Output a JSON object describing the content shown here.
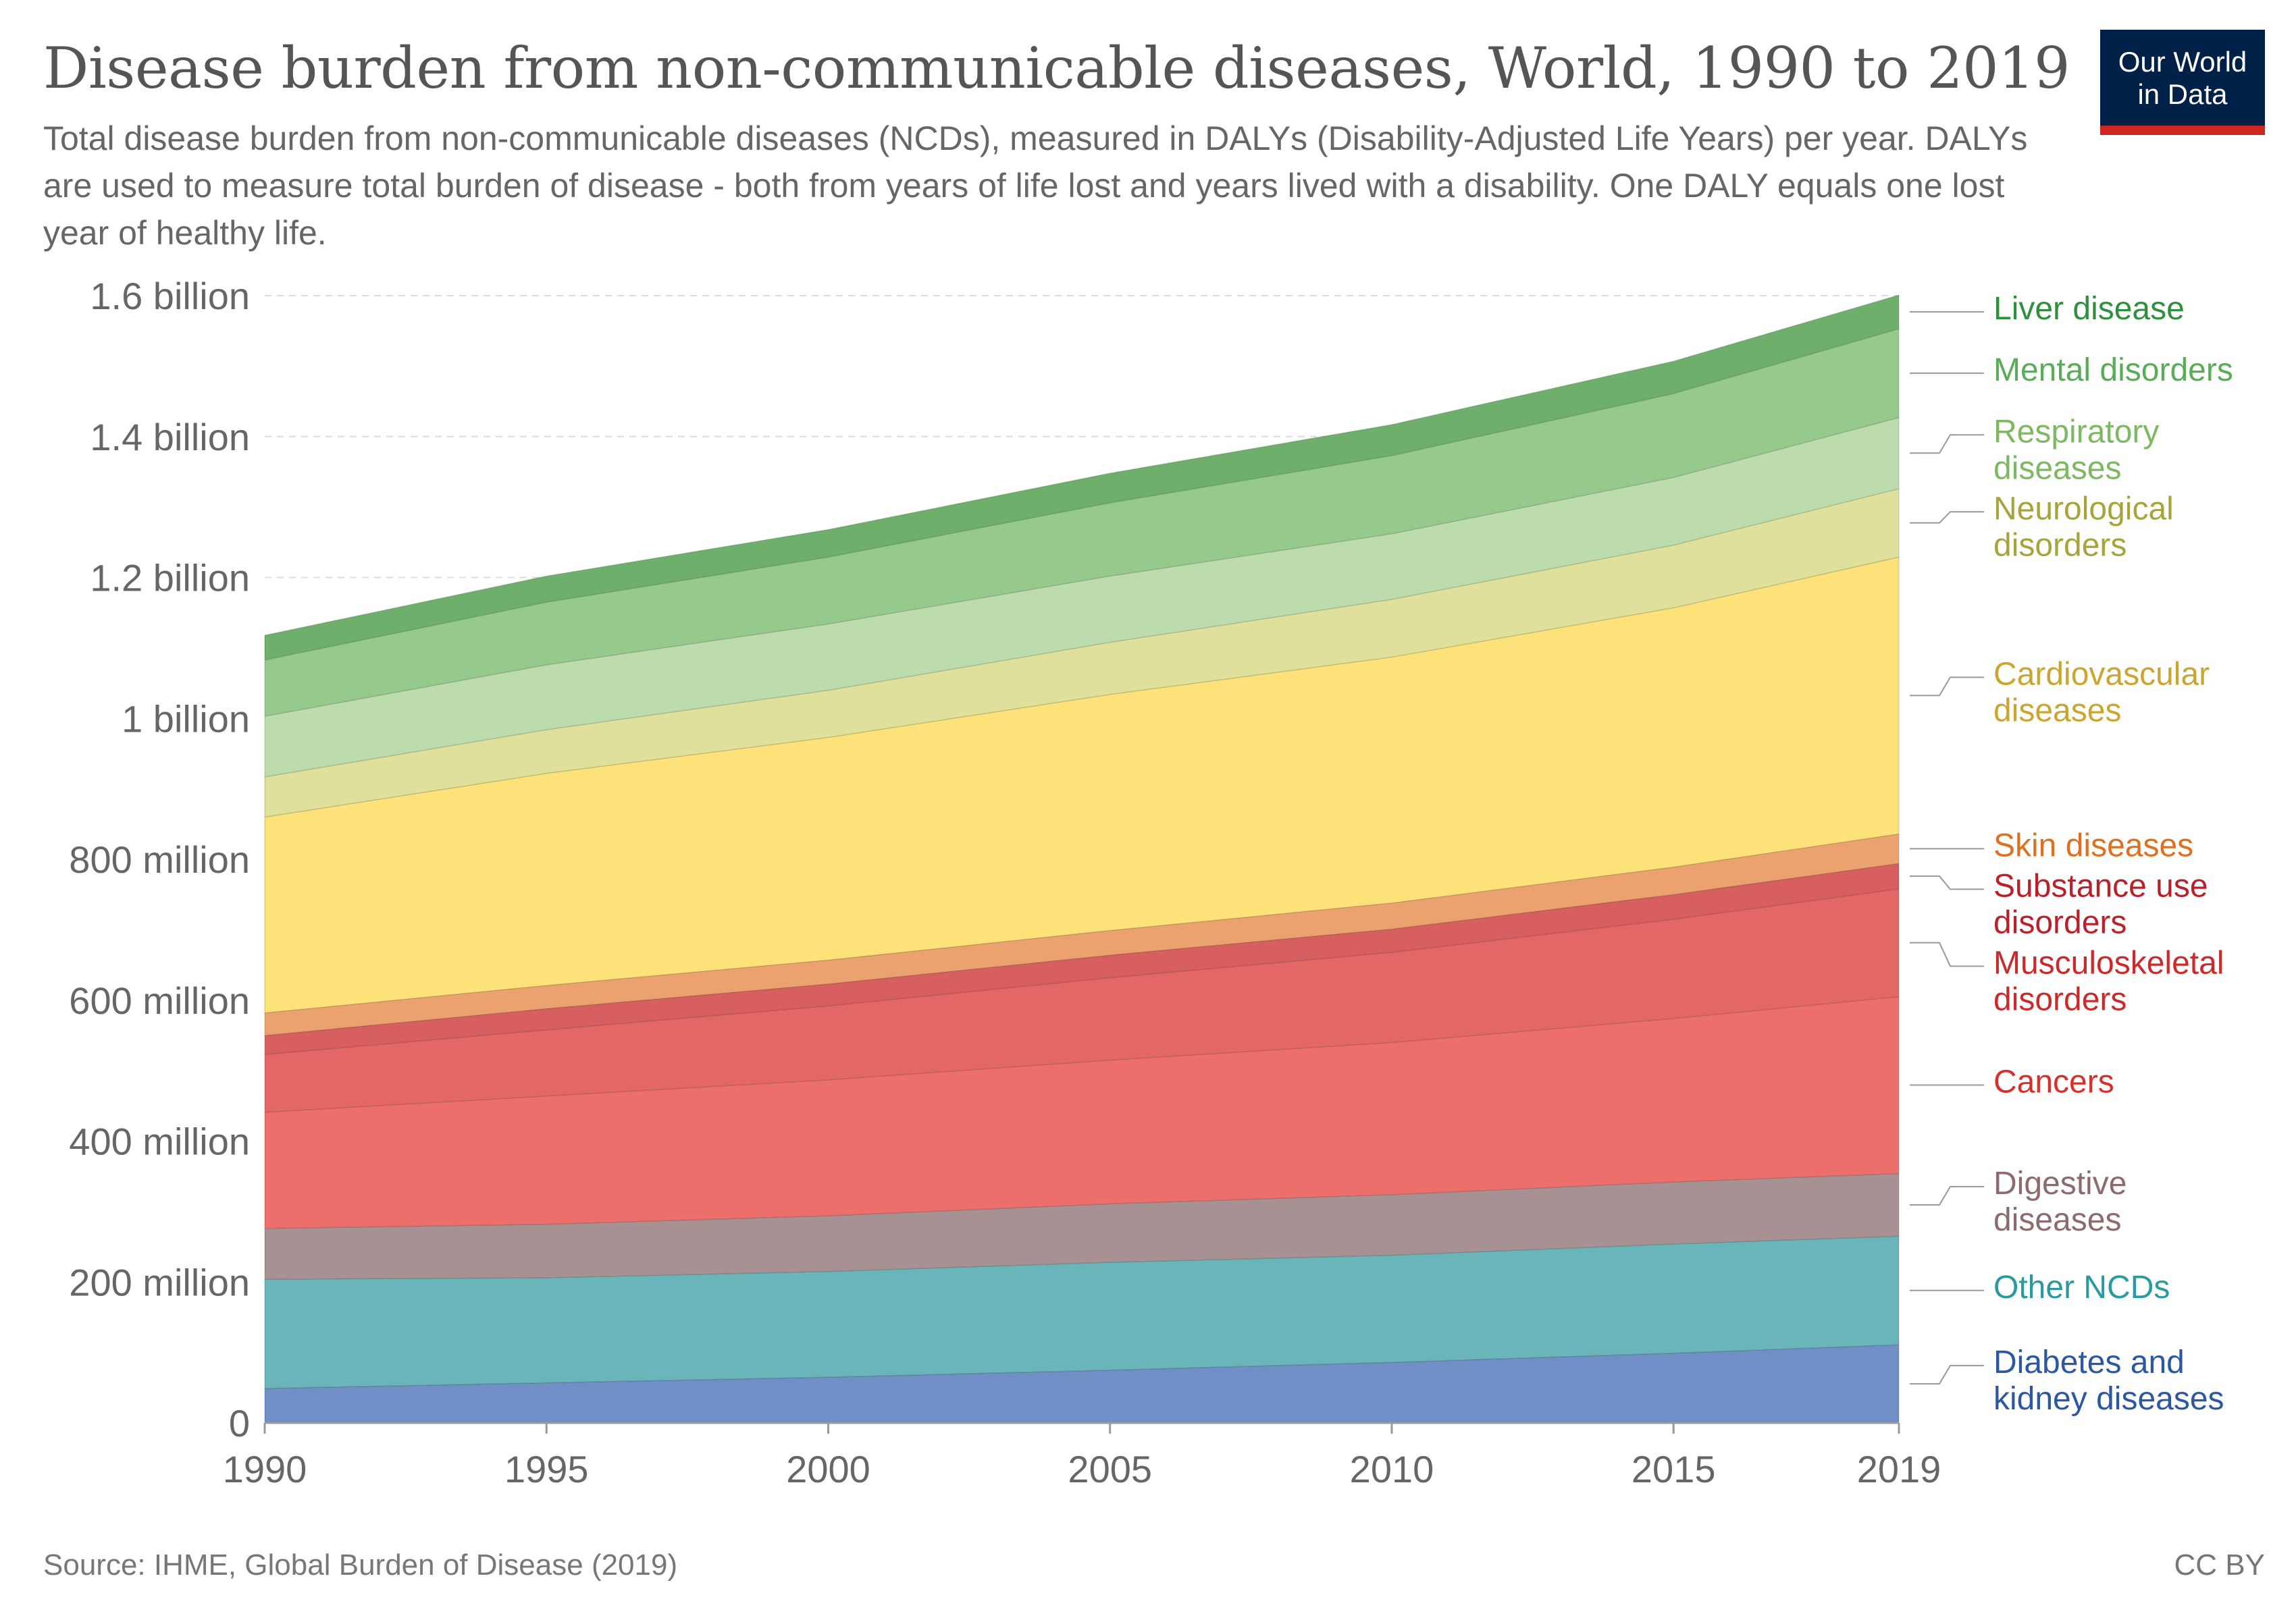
{
  "header": {
    "title": "Disease burden from non-communicable diseases, World, 1990 to 2019",
    "subtitle": "Total disease burden from non-communicable diseases (NCDs), measured in DALYs (Disability-Adjusted Life Years) per year. DALYs are used to measure total burden of disease - both from years of life lost and years lived with a disability. One DALY equals one lost year of healthy life.",
    "logo_line1": "Our World",
    "logo_line2": "in Data"
  },
  "footer": {
    "source": "Source: IHME, Global Burden of Disease (2019)",
    "license": "CC BY"
  },
  "chart_data": {
    "type": "area",
    "stacked": true,
    "title": "Disease burden from non-communicable diseases, World, 1990 to 2019",
    "xlabel": "",
    "ylabel": "",
    "xlim": [
      1990,
      2019
    ],
    "ylim": [
      0,
      1600000000
    ],
    "grid": true,
    "legend_position": "right",
    "y_ticks": [
      {
        "value": 0,
        "label": "0"
      },
      {
        "value": 200000000,
        "label": "200 million"
      },
      {
        "value": 400000000,
        "label": "400 million"
      },
      {
        "value": 600000000,
        "label": "600 million"
      },
      {
        "value": 800000000,
        "label": "800 million"
      },
      {
        "value": 1000000000,
        "label": "1 billion"
      },
      {
        "value": 1200000000,
        "label": "1.2 billion"
      },
      {
        "value": 1400000000,
        "label": "1.4 billion"
      },
      {
        "value": 1600000000,
        "label": "1.6 billion"
      }
    ],
    "x_ticks": [
      {
        "value": 1990,
        "label": "1990"
      },
      {
        "value": 1995,
        "label": "1995"
      },
      {
        "value": 2000,
        "label": "2000"
      },
      {
        "value": 2005,
        "label": "2005"
      },
      {
        "value": 2010,
        "label": "2010"
      },
      {
        "value": 2015,
        "label": "2015"
      },
      {
        "value": 2019,
        "label": "2019"
      }
    ],
    "x": [
      1990,
      1995,
      2000,
      2005,
      2010,
      2015,
      2019
    ],
    "series": [
      {
        "name": "Diabetes and kidney diseases",
        "fill": "#6f8fc6",
        "text_color": "#2c57a2",
        "values": [
          49000000,
          57000000,
          65000000,
          75000000,
          86000000,
          99000000,
          111000000
        ]
      },
      {
        "name": "Other NCDs",
        "fill": "#6ab5ba",
        "text_color": "#2a9a9f",
        "values": [
          155000000,
          149000000,
          150000000,
          153000000,
          152000000,
          155000000,
          154000000
        ]
      },
      {
        "name": "Digestive diseases",
        "fill": "#a89193",
        "text_color": "#8b6b6e",
        "values": [
          72000000,
          76000000,
          79000000,
          83000000,
          86000000,
          88000000,
          89000000
        ]
      },
      {
        "name": "Cancers",
        "fill": "#ed6f6b",
        "text_color": "#d92f2b",
        "values": [
          165000000,
          182000000,
          193000000,
          204000000,
          216000000,
          232000000,
          251000000
        ]
      },
      {
        "name": "Musculoskeletal disorders",
        "fill": "#e36865",
        "text_color": "#cc2a2a",
        "values": [
          82000000,
          94000000,
          105000000,
          117000000,
          128000000,
          141000000,
          153000000
        ]
      },
      {
        "name": "Substance use disorders",
        "fill": "#d85f60",
        "text_color": "#bb1f2a",
        "values": [
          27000000,
          30000000,
          31000000,
          32000000,
          33000000,
          35000000,
          36000000
        ]
      },
      {
        "name": "Skin diseases",
        "fill": "#eba26f",
        "text_color": "#e06f1f",
        "values": [
          32000000,
          33000000,
          34000000,
          35000000,
          37000000,
          39000000,
          42000000
        ]
      },
      {
        "name": "Cardiovascular diseases",
        "fill": "#fde27a",
        "text_color": "#caa52f",
        "values": [
          278000000,
          301000000,
          316000000,
          335000000,
          349000000,
          368000000,
          393000000
        ]
      },
      {
        "name": "Neurological disorders",
        "fill": "#dee09b",
        "text_color": "#a7a43a",
        "values": [
          57000000,
          62000000,
          67000000,
          74000000,
          82000000,
          89000000,
          97000000
        ]
      },
      {
        "name": "Respiratory diseases",
        "fill": "#bddcad",
        "text_color": "#7fb863",
        "values": [
          86000000,
          92000000,
          94000000,
          94000000,
          93000000,
          96000000,
          101000000
        ]
      },
      {
        "name": "Mental disorders",
        "fill": "#96c98c",
        "text_color": "#5aad57",
        "values": [
          80000000,
          89000000,
          95000000,
          104000000,
          111000000,
          119000000,
          126000000
        ]
      },
      {
        "name": "Liver disease",
        "fill": "#6eb06b",
        "text_color": "#2f8f3c",
        "values": [
          35000000,
          37000000,
          39000000,
          42000000,
          44000000,
          46000000,
          48000000
        ]
      }
    ],
    "legend_labels": [
      {
        "series": "Liver disease",
        "lines": [
          "Liver disease"
        ]
      },
      {
        "series": "Mental disorders",
        "lines": [
          "Mental disorders"
        ]
      },
      {
        "series": "Respiratory diseases",
        "lines": [
          "Respiratory",
          "diseases"
        ]
      },
      {
        "series": "Neurological disorders",
        "lines": [
          "Neurological",
          "disorders"
        ]
      },
      {
        "series": "Cardiovascular diseases",
        "lines": [
          "Cardiovascular",
          "diseases"
        ]
      },
      {
        "series": "Skin diseases",
        "lines": [
          "Skin diseases"
        ]
      },
      {
        "series": "Substance use disorders",
        "lines": [
          "Substance use",
          "disorders"
        ]
      },
      {
        "series": "Musculoskeletal disorders",
        "lines": [
          "Musculoskeletal",
          "disorders"
        ]
      },
      {
        "series": "Cancers",
        "lines": [
          "Cancers"
        ]
      },
      {
        "series": "Digestive diseases",
        "lines": [
          "Digestive",
          "diseases"
        ]
      },
      {
        "series": "Other NCDs",
        "lines": [
          "Other NCDs"
        ]
      },
      {
        "series": "Diabetes and kidney diseases",
        "lines": [
          "Diabetes and",
          "kidney diseases"
        ]
      }
    ]
  }
}
